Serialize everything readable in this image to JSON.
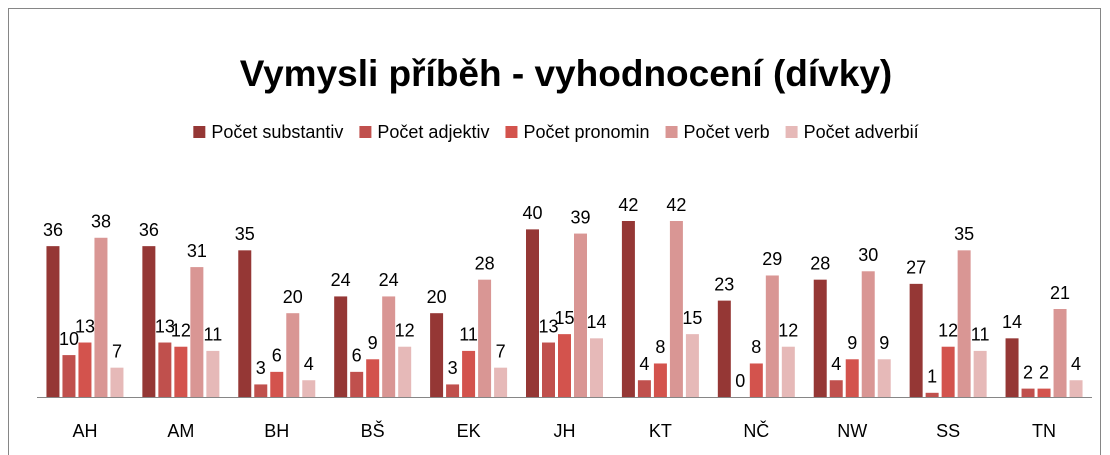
{
  "chart_data": {
    "type": "bar",
    "title": "Vymysli příběh - vyhodnocení (dívky)",
    "categories": [
      "AH",
      "AM",
      "BH",
      "BŠ",
      "EK",
      "JH",
      "KT",
      "NČ",
      "NW",
      "SS",
      "TN"
    ],
    "series": [
      {
        "name": "Počet substantiv",
        "color": "#953735",
        "values": [
          36,
          36,
          35,
          24,
          20,
          40,
          42,
          23,
          28,
          27,
          14
        ]
      },
      {
        "name": "Počet adjektiv",
        "color": "#c0504d",
        "values": [
          10,
          13,
          3,
          6,
          3,
          13,
          4,
          0,
          4,
          1,
          2
        ]
      },
      {
        "name": "Počet pronomin",
        "color": "#d3534d",
        "values": [
          13,
          12,
          6,
          9,
          11,
          15,
          8,
          8,
          9,
          12,
          2
        ]
      },
      {
        "name": "Počet verb",
        "color": "#d99694",
        "values": [
          38,
          31,
          20,
          24,
          28,
          39,
          42,
          29,
          30,
          35,
          21
        ]
      },
      {
        "name": "Počet adverbií",
        "color": "#e6b9b8",
        "values": [
          7,
          11,
          4,
          12,
          7,
          14,
          15,
          12,
          9,
          11,
          4
        ]
      }
    ],
    "legend": "top"
  }
}
